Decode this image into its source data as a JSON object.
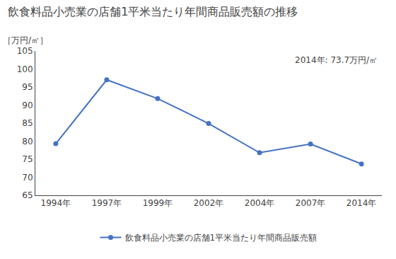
{
  "chart_data": {
    "type": "line",
    "title": "飲食料品小売業の店舗1平米当たり年間商品販売額の推移",
    "ylabel": "［万円/㎡］",
    "annotation": "2014年: 73.7万円/㎡",
    "categories": [
      "1994年",
      "1997年",
      "1999年",
      "2002年",
      "2004年",
      "2007年",
      "2014年"
    ],
    "series": [
      {
        "name": "飲食料品小売業の店舗1平米当たり年間商品販売額",
        "color": "#4472C4",
        "marker": "circle",
        "values": [
          79.3,
          97.0,
          91.8,
          84.9,
          76.8,
          79.2,
          73.7
        ]
      }
    ],
    "ylim": [
      65,
      105
    ],
    "yticks": [
      65,
      70,
      75,
      80,
      85,
      90,
      95,
      100,
      105
    ],
    "grid": false,
    "legend": "bottom"
  }
}
